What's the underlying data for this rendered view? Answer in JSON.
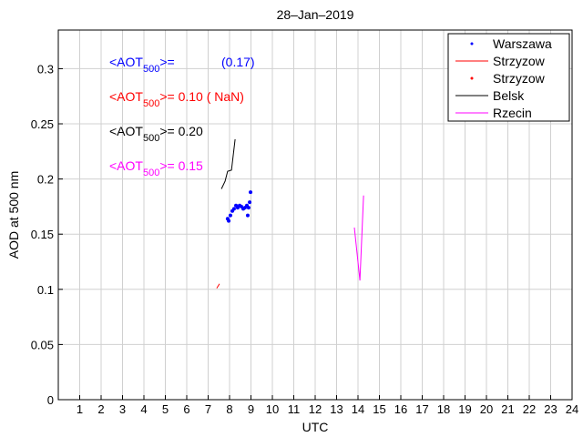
{
  "chart_data": {
    "type": "line",
    "title": "28–Jan–2019",
    "xlabel": "UTC",
    "ylabel": "AOD at 500 nm",
    "xlim": [
      0,
      24
    ],
    "ylim": [
      0,
      0.335
    ],
    "grid": true,
    "xticks": [
      1,
      2,
      3,
      4,
      5,
      6,
      7,
      8,
      9,
      10,
      11,
      12,
      13,
      14,
      15,
      16,
      17,
      18,
      19,
      20,
      21,
      22,
      23,
      24
    ],
    "yticks": [
      0,
      0.05,
      0.1,
      0.15,
      0.2,
      0.25,
      0.3
    ],
    "ytick_labels": [
      "0",
      "0.05",
      "0.1",
      "0.15",
      "0.2",
      "0.25",
      "0.3"
    ],
    "legend_position": "top-right",
    "series": [
      {
        "name": "Warszawa",
        "style": "points",
        "color": "#0000ff",
        "x": [
          7.91,
          7.96,
          8.04,
          8.13,
          8.21,
          8.3,
          8.38,
          8.47,
          8.55,
          8.64,
          8.72,
          8.81,
          8.85,
          8.89,
          8.94,
          8.98
        ],
        "y": [
          0.164,
          0.162,
          0.167,
          0.171,
          0.173,
          0.176,
          0.174,
          0.176,
          0.175,
          0.173,
          0.174,
          0.176,
          0.167,
          0.174,
          0.179,
          0.188
        ]
      },
      {
        "name": "Strzyzow",
        "style": "line",
        "color": "#ff0000",
        "x": [
          7.4,
          7.53
        ],
        "y": [
          0.101,
          0.105
        ]
      },
      {
        "name": "Strzyzow",
        "style": "points",
        "color": "#ff0000",
        "x": [],
        "y": []
      },
      {
        "name": "Belsk",
        "style": "line",
        "color": "#000000",
        "x": [
          7.62,
          7.79,
          7.91,
          8.09,
          8.26
        ],
        "y": [
          0.191,
          0.198,
          0.207,
          0.208,
          0.236
        ]
      },
      {
        "name": "Rzecin",
        "style": "line",
        "color": "#ff00ff",
        "x": [
          13.83,
          14.09,
          14.26
        ],
        "y": [
          0.156,
          0.108,
          0.185
        ]
      }
    ],
    "annotations": [
      {
        "prefix": "<AOT",
        "sub": "500",
        "suffix": ">=",
        "value": "         (0.17)",
        "color": "#0000ff"
      },
      {
        "prefix": "<AOT",
        "sub": "500",
        "suffix": ">=",
        "value": " 0.10 ( NaN)",
        "color": "#ff0000"
      },
      {
        "prefix": "<AOT",
        "sub": "500",
        "suffix": ">=",
        "value": " 0.20",
        "color": "#000000"
      },
      {
        "prefix": "<AOT",
        "sub": "500",
        "suffix": ">=",
        "value": " 0.15",
        "color": "#ff00ff"
      }
    ]
  }
}
